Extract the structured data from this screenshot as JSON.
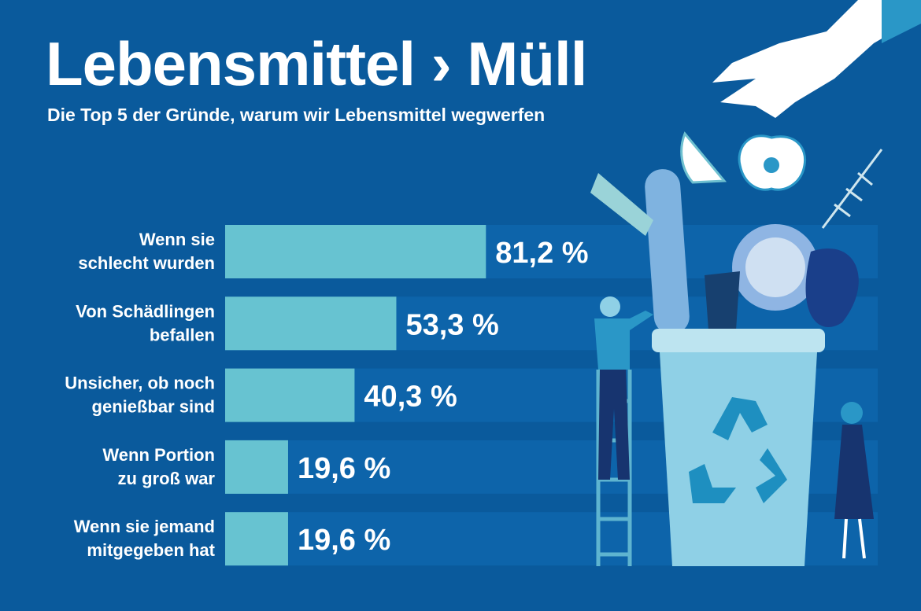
{
  "header": {
    "title": "Lebensmittel › Müll",
    "subtitle": "Die Top 5 der Gründe, warum wir Lebensmittel wegwerfen"
  },
  "colors": {
    "background": "#0a5a9c",
    "track": "#0d64aa",
    "bar": "#67c3d1",
    "text": "#ffffff"
  },
  "chart_data": {
    "type": "bar",
    "orientation": "horizontal",
    "title": "Lebensmittel › Müll",
    "subtitle": "Die Top 5 der Gründe, warum wir Lebensmittel wegwerfen",
    "unit": "%",
    "categories": [
      [
        "Wenn sie",
        "schlecht wurden"
      ],
      [
        "Von Schädlingen",
        "befallen"
      ],
      [
        "Unsicher, ob noch",
        "genießbar sind"
      ],
      [
        "Wenn Portion",
        "zu groß war"
      ],
      [
        "Wenn sie jemand",
        "mitgegeben hat"
      ]
    ],
    "values": [
      81.2,
      53.3,
      40.3,
      19.6,
      19.6
    ],
    "labels": [
      "81,2 %",
      "53,3 %",
      "40,3 %",
      "19,6 %",
      "19,6 %"
    ],
    "xlim": [
      0,
      100
    ],
    "grid": false,
    "legend": "none"
  }
}
